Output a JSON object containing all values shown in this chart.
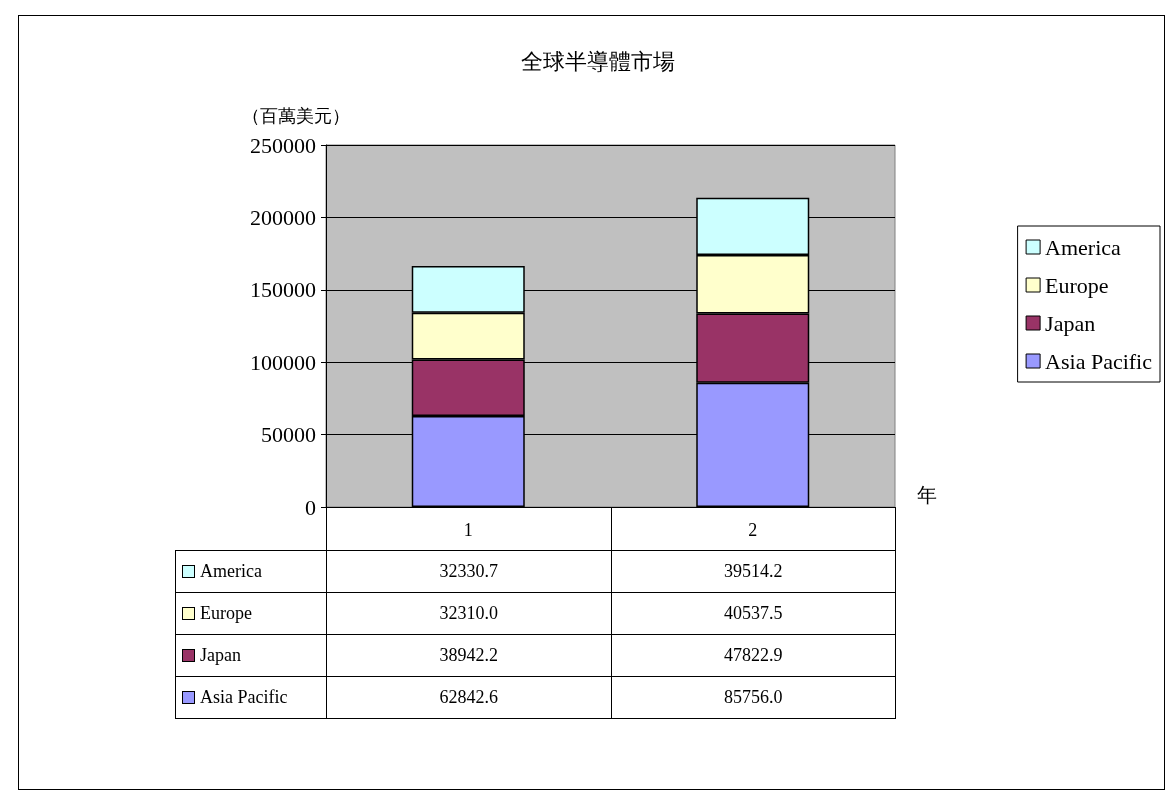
{
  "chart_data": {
    "type": "bar",
    "title": "全球半導體市場",
    "ylabel": "（百萬美元）",
    "xlabel": "年",
    "categories": [
      "1",
      "2"
    ],
    "stacked": true,
    "series": [
      {
        "name": "Asia Pacific",
        "color": "#9999ff",
        "values": [
          62842.6,
          85756.0
        ],
        "value_labels": [
          "62842.6",
          "85756.0"
        ]
      },
      {
        "name": "Japan",
        "color": "#993366",
        "values": [
          38942.2,
          47822.9
        ],
        "value_labels": [
          "38942.2",
          "47822.9"
        ]
      },
      {
        "name": "Europe",
        "color": "#ffffcc",
        "values": [
          32310.0,
          40537.5
        ],
        "value_labels": [
          "32310.0",
          "40537.5"
        ]
      },
      {
        "name": "America",
        "color": "#ccffff",
        "values": [
          32330.7,
          39514.2
        ],
        "value_labels": [
          "32330.7",
          "39514.2"
        ]
      }
    ],
    "ylim": [
      0,
      250000
    ],
    "yticks": [
      0,
      50000,
      100000,
      150000,
      200000,
      250000
    ],
    "grid": "y",
    "legend": "right"
  }
}
